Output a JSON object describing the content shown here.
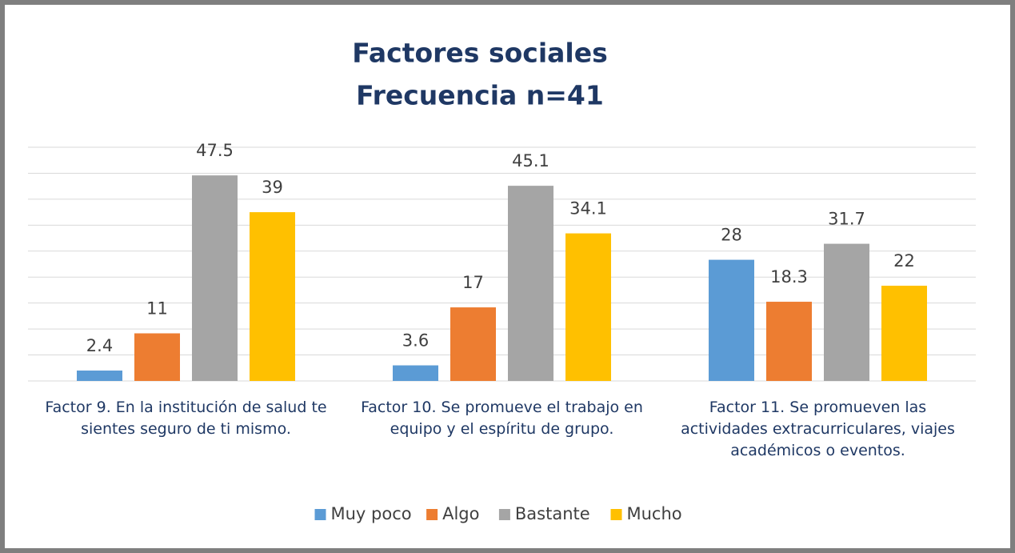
{
  "chart_data": {
    "type": "bar",
    "title": "Factores sociales",
    "subtitle": "Frecuencia n=41",
    "categories": [
      "Factor 9. En la institución de salud te sientes seguro de ti mismo.",
      "Factor 10. Se promueve el trabajo en equipo y el espíritu de grupo.",
      "Factor 11. Se promueven las actividades extracurriculares, viajes académicos o eventos."
    ],
    "series": [
      {
        "name": "Muy poco",
        "color": "#5b9bd5",
        "values": [
          2.4,
          3.6,
          28
        ]
      },
      {
        "name": "Algo",
        "color": "#ed7d31",
        "values": [
          11,
          17,
          18.3
        ]
      },
      {
        "name": "Bastante",
        "color": "#a5a5a5",
        "values": [
          47.5,
          45.1,
          31.7
        ]
      },
      {
        "name": "Mucho",
        "color": "#ffc000",
        "values": [
          39,
          34.1,
          22
        ]
      }
    ],
    "ylim": [
      0,
      54
    ],
    "yticks": [
      0,
      6,
      12,
      18,
      24,
      30,
      36,
      42,
      48,
      54
    ],
    "grid": true,
    "legend": "bottom"
  }
}
